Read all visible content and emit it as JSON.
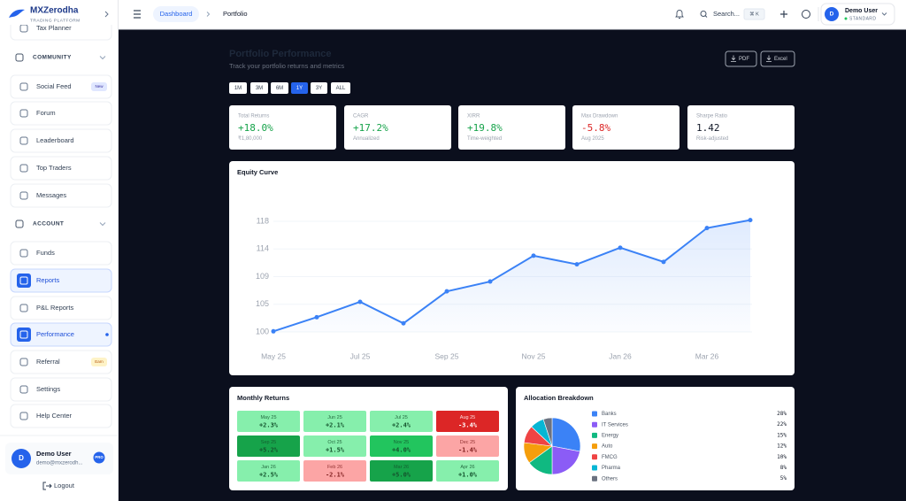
{
  "brand": {
    "name": "MXZerodha",
    "tagline": "TRADING PLATFORM"
  },
  "sidebar": {
    "items": [
      {
        "label": "Tax Planner"
      },
      {
        "section": "COMMUNITY"
      },
      {
        "label": "Social Feed",
        "badge": "New"
      },
      {
        "label": "Forum"
      },
      {
        "label": "Leaderboard"
      },
      {
        "label": "Top Traders"
      },
      {
        "label": "Messages"
      },
      {
        "section": "ACCOUNT"
      },
      {
        "label": "Funds"
      },
      {
        "label": "Reports"
      },
      {
        "label": "P&L Reports"
      },
      {
        "label": "Performance"
      },
      {
        "label": "Referral",
        "badge": "Earn"
      },
      {
        "label": "Settings"
      },
      {
        "label": "Help Center"
      }
    ],
    "user": {
      "initial": "D",
      "name": "Demo User",
      "email": "demo@mxzerodh...",
      "badge": "PRO"
    },
    "logout": "Logout"
  },
  "header": {
    "breadcrumb": [
      "Dashboard",
      "Portfolio"
    ],
    "search": "Search...",
    "shortcut": "⌘ K",
    "user": {
      "initial": "D",
      "name": "Demo User",
      "plan": "STANDARD"
    }
  },
  "page": {
    "title": "Portfolio Performance",
    "subtitle": "Track your portfolio returns and metrics",
    "exports": [
      "PDF",
      "Excel"
    ],
    "periods": [
      "1M",
      "3M",
      "6M",
      "1Y",
      "3Y",
      "ALL"
    ]
  },
  "metrics": [
    {
      "label": "Total Returns",
      "value": "+18.0%",
      "note": "₹1,80,000"
    },
    {
      "label": "CAGR",
      "value": "+17.2%",
      "note": "Annualized"
    },
    {
      "label": "XIRR",
      "value": "+19.8%",
      "note": "Time-weighted"
    },
    {
      "label": "Max Drawdown",
      "value": "-5.8%",
      "note": "Aug 2025"
    },
    {
      "label": "Sharpe Ratio",
      "value": "1.42",
      "note": "Risk-adjusted"
    }
  ],
  "chart_data": [
    {
      "type": "line",
      "title": "Equity Curve",
      "categories": [
        "May 25",
        null,
        "Jul 25",
        null,
        "Sep 25",
        null,
        "Nov 25",
        null,
        "Jan 26",
        null,
        "Mar 26",
        null
      ],
      "values": [
        100.1,
        102.4,
        104.9,
        101.4,
        106.6,
        108.2,
        112.4,
        111.0,
        113.7,
        111.4,
        116.9,
        118.2
      ],
      "color": "#3b82f6",
      "ylim": [
        100,
        118
      ],
      "yticks": [
        100,
        {
          "value": 104.5,
          "label": "105"
        },
        109,
        {
          "value": 113.5,
          "label": "114"
        },
        118
      ],
      "grid": true
    },
    {
      "type": "heatmap",
      "title": "Monthly Returns",
      "categories": [
        "May 25",
        "Jun 25",
        "Jul 25",
        "Aug 25",
        "Sep 25",
        "Oct 25",
        "Nov 25",
        "Dec 25",
        "Jan 26",
        "Feb 26",
        "Mar 26",
        "Apr 26"
      ],
      "values": [
        2.3,
        2.1,
        2.4,
        -3.4,
        5.2,
        1.5,
        4.0,
        -1.4,
        2.5,
        -2.1,
        5.0,
        1.0
      ],
      "value_labels": [
        "+2.3%",
        "+2.1%",
        "+2.4%",
        "-3.4%",
        "+5.2%",
        "+1.5%",
        "+4.0%",
        "-1.4%",
        "+2.5%",
        "-2.1%",
        "+5.0%",
        "+1.0%"
      ]
    },
    {
      "type": "pie",
      "title": "Allocation Breakdown",
      "categories": [
        "Banks",
        "IT Services",
        "Energy",
        "Auto",
        "FMCG",
        "Pharma",
        "Others"
      ],
      "values": [
        28,
        22,
        15,
        12,
        10,
        8,
        5
      ],
      "value_labels": [
        "28%",
        "22%",
        "15%",
        "12%",
        "10%",
        "8%",
        "5%"
      ],
      "colors": [
        "#3b82f6",
        "#8b5cf6",
        "#10b981",
        "#f59e0b",
        "#ef4444",
        "#06b6d4",
        "#6b7280"
      ]
    }
  ]
}
